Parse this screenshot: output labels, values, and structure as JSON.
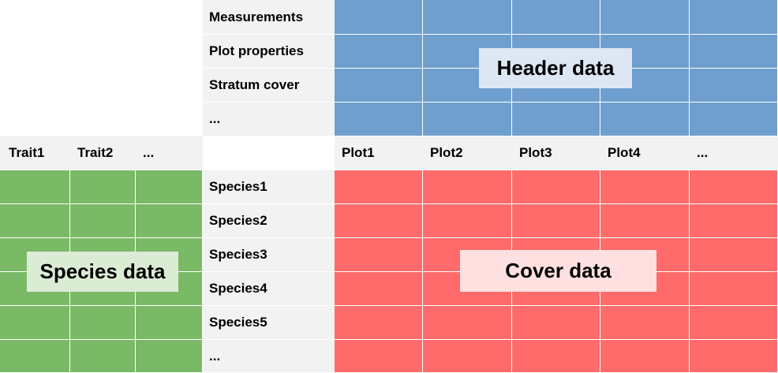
{
  "colors": {
    "header": "#6f9fce",
    "species": "#7aba67",
    "cover": "#ff6b6b",
    "label_bg": "#f2f2f2",
    "header_label_box": "#dde7f3",
    "species_label_box": "#dbecd5",
    "cover_label_box": "#ffe0e0"
  },
  "header_rows": [
    "Measurements",
    "Plot properties",
    "Stratum cover",
    "..."
  ],
  "trait_columns": [
    "Trait1",
    "Trait2",
    "..."
  ],
  "plot_columns": [
    "Plot1",
    "Plot2",
    "Plot3",
    "Plot4",
    "..."
  ],
  "species_rows": [
    "Species1",
    "Species2",
    "Species3",
    "Species4",
    "Species5",
    "..."
  ],
  "regions": {
    "header": "Header data",
    "species": "Species data",
    "cover": "Cover data"
  }
}
